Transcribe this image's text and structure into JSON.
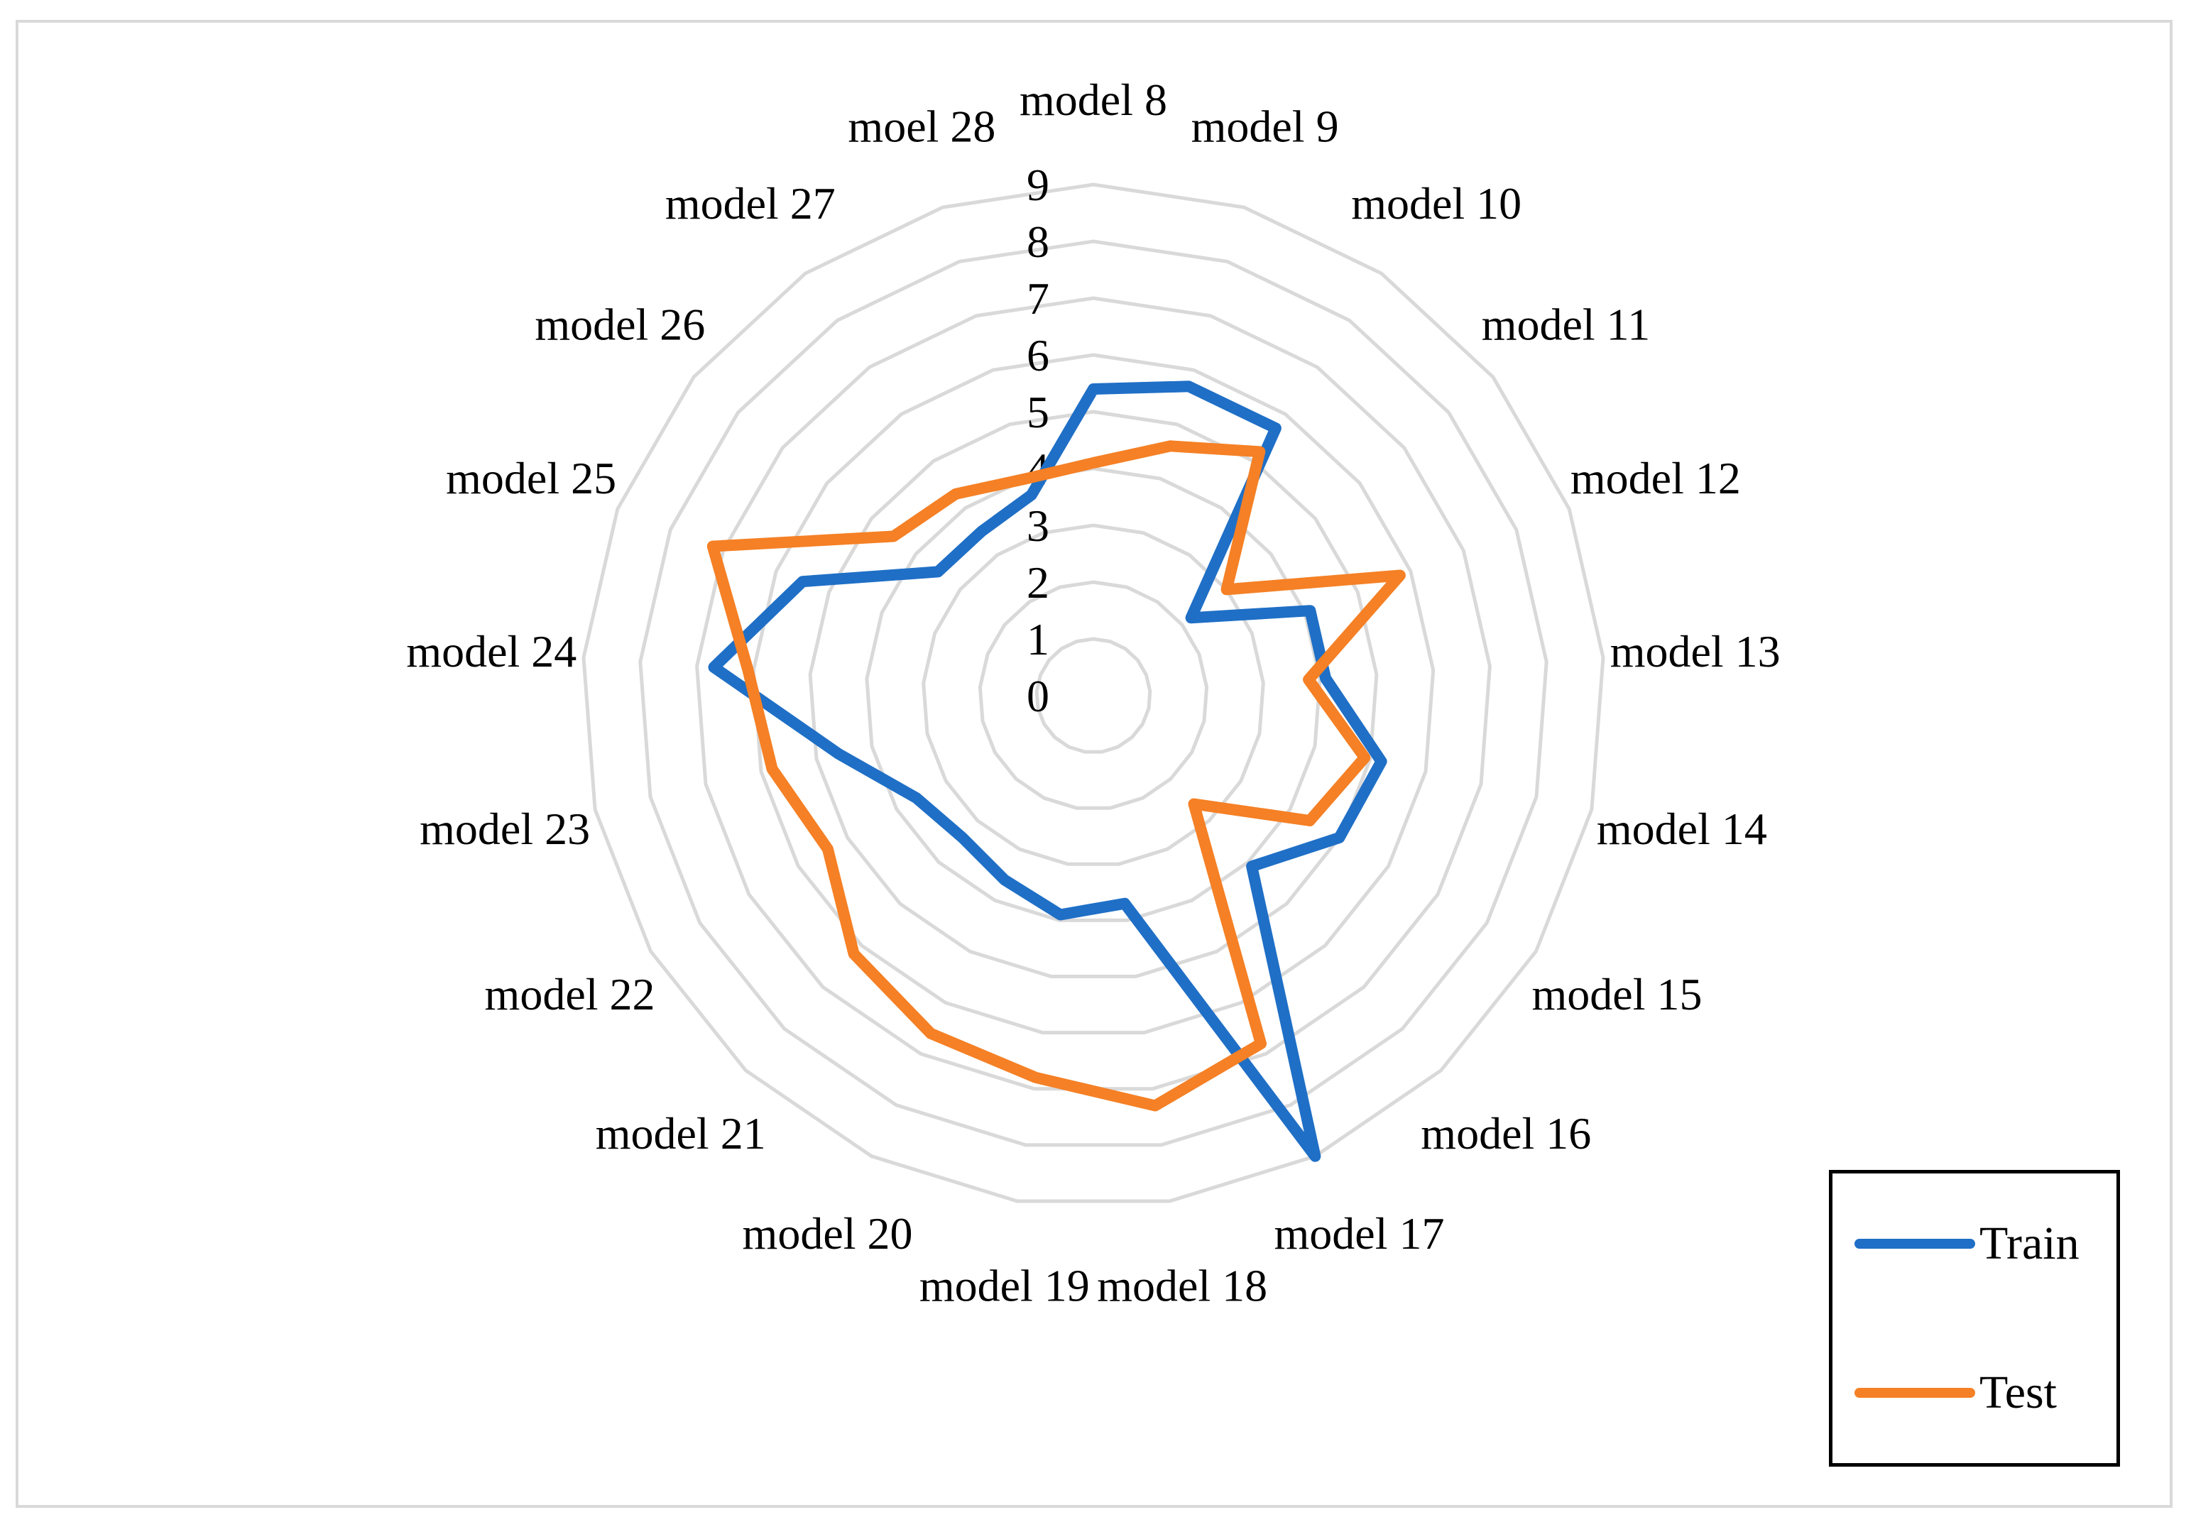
{
  "chart_data": {
    "type": "radar",
    "categories": [
      "model 8",
      "model 9",
      "model 10",
      "model 11",
      "model 12",
      "model 13",
      "model 14",
      "model 15",
      "model 16",
      "model 17",
      "model 18",
      "model 19",
      "model 20",
      "model 21",
      "model 22",
      "model 23",
      "model 24",
      "model 25",
      "model 26",
      "model 27",
      "moel 28"
    ],
    "axis_ticks": [
      "0",
      "1",
      "2",
      "3",
      "4",
      "5",
      "6",
      "7",
      "8",
      "9"
    ],
    "rlim": [
      0,
      9
    ],
    "series": [
      {
        "name": "Train",
        "color": "#1f6fc6",
        "values": [
          5.4,
          5.7,
          5.7,
          2.2,
          4.1,
          4.1,
          5.2,
          5.0,
          4.1,
          9.0,
          3.7,
          3.9,
          3.6,
          3.4,
          3.6,
          4.6,
          6.7,
          5.5,
          3.5,
          3.5,
          3.7
        ]
      },
      {
        "name": "Test",
        "color": "#f58025",
        "values": [
          4.1,
          4.6,
          5.2,
          3.0,
          5.8,
          3.8,
          4.9,
          4.4,
          2.6,
          6.8,
          7.3,
          6.8,
          6.6,
          6.2,
          5.4,
          5.8,
          6.1,
          7.2,
          4.5,
          4.3,
          4.0
        ]
      }
    ],
    "legend": {
      "position": "bottom-right",
      "entries": [
        "Train",
        "Test"
      ]
    },
    "grid": true
  }
}
